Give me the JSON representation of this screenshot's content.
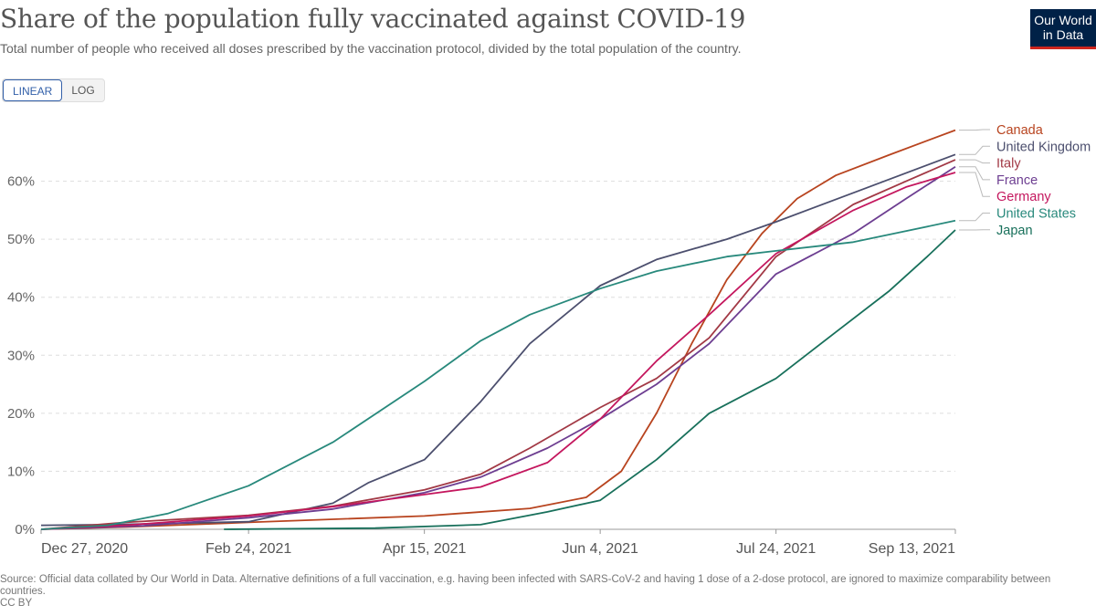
{
  "header": {
    "title": "Share of the population fully vaccinated against COVID-19",
    "subtitle": "Total number of people who received all doses prescribed by the vaccination protocol, divided by the total population of the country.",
    "logo": "Our World\nin Data"
  },
  "controls": {
    "linear_label": "LINEAR",
    "log_label": "LOG"
  },
  "footer": {
    "source": "Source: Official data collated by Our World in Data. Alternative definitions of a full vaccination, e.g. having been infected with SARS-CoV-2 and having 1 dose of a 2-dose protocol, are ignored to maximize comparability between countries.",
    "license": "CC BY"
  },
  "chart_data": {
    "type": "line",
    "title": "Share of the population fully vaccinated against COVID-19",
    "xlabel": "",
    "ylabel": "",
    "y_unit": "%",
    "ylim": [
      0,
      70
    ],
    "xlim": [
      "2020-12-27",
      "2021-09-13"
    ],
    "yticks": [
      0,
      10,
      20,
      30,
      40,
      50,
      60
    ],
    "ytick_labels": [
      "0%",
      "10%",
      "20%",
      "30%",
      "40%",
      "50%",
      "60%"
    ],
    "xticks": [
      "2020-12-27",
      "2021-02-24",
      "2021-04-15",
      "2021-06-04",
      "2021-07-24",
      "2021-09-13"
    ],
    "xtick_labels": [
      "Dec 27, 2020",
      "Feb 24, 2021",
      "Apr 15, 2021",
      "Jun 4, 2021",
      "Jul 24, 2021",
      "Sep 13, 2021"
    ],
    "grid": "horizontal dashed",
    "legend": "right, labels at line ends",
    "series": [
      {
        "name": "Canada",
        "color": "#b8441f",
        "label_value": 68.8,
        "points": [
          [
            "2020-12-27",
            0
          ],
          [
            "2021-01-20",
            0.4
          ],
          [
            "2021-02-24",
            1.2
          ],
          [
            "2021-04-15",
            2.3
          ],
          [
            "2021-05-15",
            3.6
          ],
          [
            "2021-05-31",
            5.5
          ],
          [
            "2021-06-10",
            10
          ],
          [
            "2021-06-20",
            20
          ],
          [
            "2021-06-30",
            32
          ],
          [
            "2021-07-10",
            43
          ],
          [
            "2021-07-20",
            51
          ],
          [
            "2021-07-30",
            57
          ],
          [
            "2021-08-10",
            61
          ],
          [
            "2021-08-25",
            64.5
          ],
          [
            "2021-09-13",
            68.8
          ]
        ]
      },
      {
        "name": "United Kingdom",
        "color": "#4c4f6e",
        "label_value": 64.6,
        "points": [
          [
            "2020-12-27",
            0.7
          ],
          [
            "2021-01-15",
            0.8
          ],
          [
            "2021-02-24",
            1.3
          ],
          [
            "2021-03-20",
            4.5
          ],
          [
            "2021-03-30",
            8
          ],
          [
            "2021-04-15",
            12
          ],
          [
            "2021-05-01",
            22
          ],
          [
            "2021-05-15",
            32
          ],
          [
            "2021-06-04",
            42
          ],
          [
            "2021-06-20",
            46.5
          ],
          [
            "2021-07-10",
            50
          ],
          [
            "2021-07-24",
            53
          ],
          [
            "2021-08-15",
            58
          ],
          [
            "2021-09-13",
            64.6
          ]
        ]
      },
      {
        "name": "Italy",
        "color": "#a23945",
        "label_value": 63.7,
        "points": [
          [
            "2020-12-27",
            0
          ],
          [
            "2021-01-20",
            1.2
          ],
          [
            "2021-02-24",
            2.4
          ],
          [
            "2021-03-20",
            4
          ],
          [
            "2021-04-15",
            6.8
          ],
          [
            "2021-05-01",
            9.5
          ],
          [
            "2021-05-15",
            14
          ],
          [
            "2021-06-04",
            21
          ],
          [
            "2021-06-20",
            26
          ],
          [
            "2021-07-05",
            33
          ],
          [
            "2021-07-24",
            47
          ],
          [
            "2021-08-15",
            56
          ],
          [
            "2021-08-30",
            60
          ],
          [
            "2021-09-13",
            63.7
          ]
        ]
      },
      {
        "name": "France",
        "color": "#6d3e91",
        "label_value": 62.5,
        "points": [
          [
            "2020-12-27",
            0
          ],
          [
            "2021-01-25",
            0.6
          ],
          [
            "2021-02-24",
            2
          ],
          [
            "2021-03-20",
            3.5
          ],
          [
            "2021-04-15",
            6.3
          ],
          [
            "2021-05-01",
            9
          ],
          [
            "2021-05-20",
            14
          ],
          [
            "2021-06-04",
            19
          ],
          [
            "2021-06-20",
            25
          ],
          [
            "2021-07-05",
            32
          ],
          [
            "2021-07-24",
            44
          ],
          [
            "2021-08-15",
            51
          ],
          [
            "2021-08-30",
            57
          ],
          [
            "2021-09-13",
            62.5
          ]
        ]
      },
      {
        "name": "Germany",
        "color": "#c4175e",
        "label_value": 61.5,
        "points": [
          [
            "2020-12-27",
            0
          ],
          [
            "2021-01-20",
            0.7
          ],
          [
            "2021-02-24",
            2.3
          ],
          [
            "2021-03-20",
            3.9
          ],
          [
            "2021-04-15",
            6
          ],
          [
            "2021-05-01",
            7.3
          ],
          [
            "2021-05-20",
            11.5
          ],
          [
            "2021-06-04",
            19
          ],
          [
            "2021-06-20",
            29
          ],
          [
            "2021-07-05",
            37
          ],
          [
            "2021-07-24",
            47.5
          ],
          [
            "2021-08-15",
            55
          ],
          [
            "2021-08-30",
            59
          ],
          [
            "2021-09-13",
            61.5
          ]
        ]
      },
      {
        "name": "United States",
        "color": "#28897c",
        "label_value": 53.2,
        "points": [
          [
            "2020-12-27",
            0
          ],
          [
            "2021-01-15",
            0.7
          ],
          [
            "2021-02-01",
            2.7
          ],
          [
            "2021-02-24",
            7.5
          ],
          [
            "2021-03-20",
            15
          ],
          [
            "2021-04-15",
            25.5
          ],
          [
            "2021-05-01",
            32.5
          ],
          [
            "2021-05-15",
            37
          ],
          [
            "2021-06-04",
            41.5
          ],
          [
            "2021-06-20",
            44.5
          ],
          [
            "2021-07-10",
            47
          ],
          [
            "2021-07-24",
            48
          ],
          [
            "2021-08-15",
            49.5
          ],
          [
            "2021-09-13",
            53.2
          ]
        ]
      },
      {
        "name": "Japan",
        "color": "#18705b",
        "label_value": 51.6,
        "points": [
          [
            "2021-02-17",
            0
          ],
          [
            "2021-04-01",
            0.2
          ],
          [
            "2021-05-01",
            0.8
          ],
          [
            "2021-05-20",
            3
          ],
          [
            "2021-06-04",
            5
          ],
          [
            "2021-06-20",
            12
          ],
          [
            "2021-07-05",
            20
          ],
          [
            "2021-07-24",
            26
          ],
          [
            "2021-08-10",
            34
          ],
          [
            "2021-08-25",
            41
          ],
          [
            "2021-09-05",
            47
          ],
          [
            "2021-09-13",
            51.6
          ]
        ]
      }
    ]
  }
}
